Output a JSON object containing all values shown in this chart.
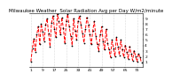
{
  "title": "Milwaukee Weather  Solar Radiation Avg per Day W/m2/minute",
  "y_values": [
    1.0,
    3.5,
    5.2,
    2.8,
    6.0,
    7.5,
    4.2,
    8.0,
    6.5,
    4.8,
    7.8,
    9.0,
    6.2,
    3.8,
    8.2,
    9.5,
    7.0,
    5.5,
    9.8,
    8.5,
    6.0,
    9.2,
    7.2,
    4.5,
    8.5,
    9.8,
    7.5,
    5.8,
    4.0,
    9.0,
    6.8,
    5.0,
    8.5,
    9.5,
    7.8,
    6.2,
    4.5,
    7.0,
    9.2,
    7.8,
    6.0,
    4.2,
    6.8,
    8.5,
    5.8,
    4.2,
    3.0,
    6.0,
    7.5,
    4.8,
    3.2,
    7.0,
    4.5,
    3.2,
    1.8,
    5.0,
    3.5,
    2.0,
    5.5,
    3.8,
    2.2,
    5.0,
    3.2,
    1.8,
    4.0,
    2.8,
    1.5,
    3.8,
    2.5,
    1.2,
    3.0,
    2.0,
    1.0,
    2.5,
    1.8,
    0.8
  ],
  "line_color": "#ff0000",
  "line_style": "--",
  "marker": ".",
  "marker_color": "#000000",
  "grid_color": "#bbbbbb",
  "bg_color": "#ffffff",
  "ylim": [
    0,
    10
  ],
  "yticks": [
    1,
    2,
    3,
    4,
    5,
    6,
    7,
    8,
    9
  ],
  "title_fontsize": 4.0,
  "tick_fontsize": 3.2,
  "vgrid_interval": 8,
  "line_width": 0.7,
  "marker_size": 1.5
}
